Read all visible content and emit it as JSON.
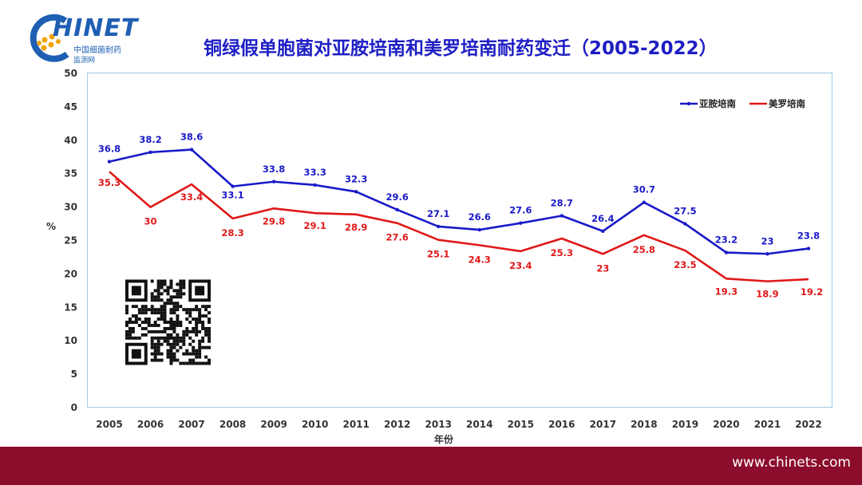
{
  "header": {
    "logo_text": "HINET",
    "logo_sub1": "中国细菌耐药",
    "logo_sub2": "监测网",
    "title": "铜绿假单胞菌对亚胺培南和美罗培南耐药变迁（2005-2022）"
  },
  "footer": {
    "url": "www.chinets.com"
  },
  "colors": {
    "imipenem": "#1a1ac8",
    "meropenem": "#e01818",
    "footer_bg": "#8c0d2b",
    "title": "#1e1ec4"
  },
  "chart_data": {
    "type": "line",
    "title": "铜绿假单胞菌对亚胺培南和美罗培南耐药变迁（2005-2022）",
    "xlabel": "年份",
    "ylabel": "%",
    "ylim": [
      0,
      50
    ],
    "ytick_step": 5,
    "grid": false,
    "legend": "top-right",
    "categories": [
      "2005",
      "2006",
      "2007",
      "2008",
      "2009",
      "2010",
      "2011",
      "2012",
      "2013",
      "2014",
      "2015",
      "2016",
      "2017",
      "2018",
      "2019",
      "2020",
      "2021",
      "2022"
    ],
    "series": [
      {
        "name": "亚胺培南",
        "color": "#1a1ac8",
        "values": [
          36.8,
          38.2,
          38.6,
          33.1,
          33.8,
          33.3,
          32.3,
          29.6,
          27.1,
          26.6,
          27.6,
          28.7,
          26.4,
          30.7,
          27.5,
          23.2,
          23,
          23.8
        ],
        "labels": [
          "36.8",
          "38.2",
          "38.6",
          "33.1",
          "33.8",
          "33.3",
          "32.3",
          "29.6",
          "27.1",
          "26.6",
          "27.6",
          "28.7",
          "26.4",
          "30.7",
          "27.5",
          "23.2",
          "23",
          "23.8"
        ]
      },
      {
        "name": "美罗培南",
        "color": "#e01818",
        "values": [
          35.3,
          30,
          33.4,
          28.3,
          29.8,
          29.1,
          28.9,
          27.6,
          25.1,
          24.3,
          23.4,
          25.3,
          23,
          25.8,
          23.5,
          19.3,
          18.9,
          19.2
        ],
        "labels": [
          "35.3",
          "30",
          "33.4",
          "28.3",
          "29.8",
          "29.1",
          "28.9",
          "27.6",
          "25.1",
          "24.3",
          "23.4",
          "25.3",
          "23",
          "25.8",
          "23.5",
          "19.3",
          "18.9",
          "19.2"
        ]
      }
    ]
  }
}
